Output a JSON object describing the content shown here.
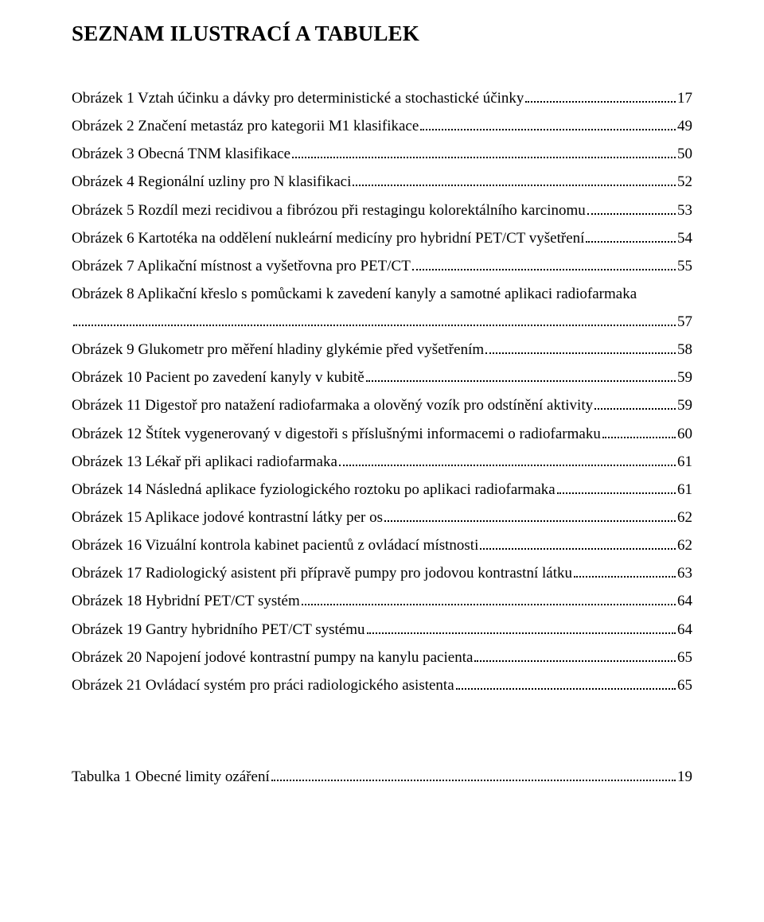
{
  "title": "SEZNAM ILUSTRACÍ A TABULEK",
  "entries": [
    {
      "text": "Obrázek 1 Vztah účinku a dávky pro deterministické a stochastické účinky",
      "page": "17"
    },
    {
      "text": "Obrázek 2 Značení metastáz pro kategorii M1 klasifikace",
      "page": "49"
    },
    {
      "text": "Obrázek 3 Obecná TNM klasifikace",
      "page": "50"
    },
    {
      "text": "Obrázek 4 Regionální uzliny pro N klasifikaci",
      "page": "52"
    },
    {
      "text": "Obrázek 5 Rozdíl mezi recidivou a fibrózou při restagingu kolorektálního karcinomu",
      "page": "53"
    },
    {
      "text": "Obrázek 6 Kartotéka na oddělení nukleární medicíny pro hybridní PET/CT vyšetření",
      "page": "54"
    },
    {
      "text": "Obrázek 7 Aplikační místnost a vyšetřovna pro PET/CT",
      "page": "55"
    },
    {
      "text": "Obrázek 8 Aplikační křeslo s pomůckami k zavedení kanyly a samotné aplikaci radiofarmaka",
      "page": "57",
      "wrap": true
    },
    {
      "text": "Obrázek 9 Glukometr pro měření hladiny glykémie před vyšetřením",
      "page": "58"
    },
    {
      "text": "Obrázek 10 Pacient po zavedení kanyly v kubitě",
      "page": "59"
    },
    {
      "text": "Obrázek 11 Digestoř pro natažení radiofarmaka a olověný vozík pro odstínění aktivity",
      "page": "59"
    },
    {
      "text": "Obrázek 12 Štítek vygenerovaný v digestoři s příslušnými informacemi o radiofarmaku",
      "page": "60"
    },
    {
      "text": "Obrázek 13 Lékař při aplikaci radiofarmaka",
      "page": "61"
    },
    {
      "text": "Obrázek 14 Následná aplikace fyziologického roztoku po aplikaci radiofarmaka",
      "page": "61"
    },
    {
      "text": "Obrázek 15 Aplikace jodové kontrastní látky per os",
      "page": "62"
    },
    {
      "text": "Obrázek 16 Vizuální kontrola kabinet pacientů z ovládací místnosti",
      "page": "62"
    },
    {
      "text": "Obrázek 17 Radiologický asistent při přípravě pumpy pro jodovou kontrastní látku",
      "page": "63"
    },
    {
      "text": "Obrázek 18 Hybridní PET/CT systém",
      "page": "64"
    },
    {
      "text": "Obrázek 19 Gantry hybridního PET/CT systému",
      "page": "64"
    },
    {
      "text": "Obrázek 20 Napojení jodové kontrastní pumpy na kanylu pacienta",
      "page": "65"
    },
    {
      "text": "Obrázek 21 Ovládací systém pro práci radiologického asistenta",
      "page": "65"
    }
  ],
  "tables": [
    {
      "text": "Tabulka 1 Obecné limity ozáření",
      "page": "19"
    }
  ]
}
